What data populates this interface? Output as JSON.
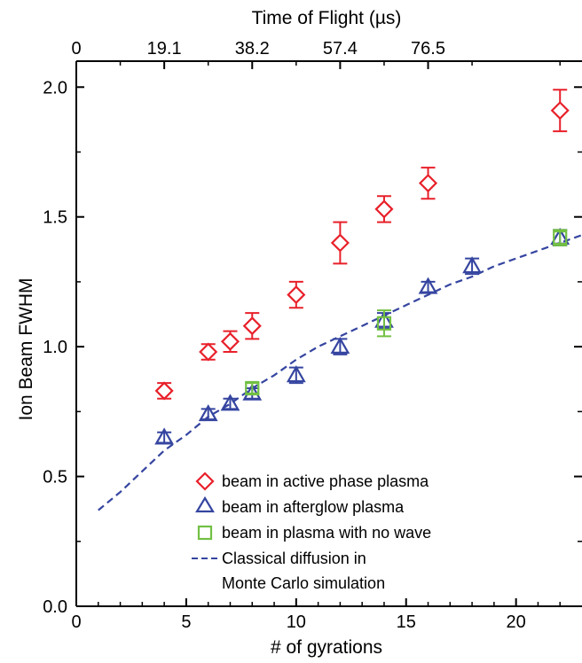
{
  "chart_data": {
    "type": "scatter",
    "xlabel": "# of gyrations",
    "ylabel": "Ion Beam FWHM",
    "top_xlabel": "Time of Flight (µs)",
    "xlim": [
      0,
      23
    ],
    "ylim": [
      0,
      2.1
    ],
    "x_ticks": [
      0,
      5,
      10,
      15,
      20
    ],
    "x_tick_labels": [
      "0",
      "5",
      "10",
      "15",
      "20"
    ],
    "y_ticks": [
      0.0,
      0.5,
      1.0,
      1.5,
      2.0
    ],
    "y_tick_labels": [
      "0.0",
      "0.5",
      "1.0",
      "1.5",
      "2.0"
    ],
    "top_ticks": [
      0,
      4,
      8,
      12,
      16
    ],
    "top_tick_labels": [
      "0",
      "19.1",
      "38.2",
      "57.4",
      "76.5"
    ],
    "grid": false,
    "legend_position": "bottom-right",
    "series": [
      {
        "name": "beam in active phase plasma",
        "marker": "diamond",
        "color": "#e8202a",
        "x": [
          4,
          6,
          7,
          8,
          10,
          12,
          14,
          16,
          22
        ],
        "y": [
          0.83,
          0.98,
          1.02,
          1.08,
          1.2,
          1.4,
          1.53,
          1.63,
          1.91
        ],
        "err": [
          0.03,
          0.03,
          0.04,
          0.05,
          0.05,
          0.08,
          0.05,
          0.06,
          0.08
        ]
      },
      {
        "name": "beam in afterglow plasma",
        "marker": "triangle",
        "color": "#3545a0",
        "x": [
          4,
          6,
          7,
          8,
          10,
          12,
          14,
          16,
          18,
          22
        ],
        "y": [
          0.65,
          0.74,
          0.78,
          0.82,
          0.89,
          1.0,
          1.1,
          1.23,
          1.31,
          1.42
        ],
        "err": [
          0.02,
          0.02,
          0.02,
          0.02,
          0.03,
          0.03,
          0.03,
          0.02,
          0.03,
          0.03
        ]
      },
      {
        "name": "beam in plasma with no wave",
        "marker": "square",
        "color": "#72c043",
        "x": [
          8,
          14,
          22
        ],
        "y": [
          0.84,
          1.09,
          1.42
        ],
        "err": [
          0.02,
          0.05,
          0.03
        ]
      }
    ],
    "curve": {
      "name": "Classical diffusion in",
      "name_line2": "Monte Carlo simulation",
      "style": "dashed",
      "color": "#3545a0",
      "x": [
        1,
        2,
        3,
        4,
        5,
        6,
        7,
        8,
        9,
        10,
        11,
        12,
        13,
        14,
        15,
        16,
        17,
        18,
        19,
        20,
        21,
        22,
        23
      ],
      "y": [
        0.37,
        0.44,
        0.52,
        0.6,
        0.66,
        0.73,
        0.78,
        0.84,
        0.89,
        0.95,
        1.0,
        1.04,
        1.08,
        1.12,
        1.16,
        1.2,
        1.24,
        1.27,
        1.31,
        1.34,
        1.37,
        1.4,
        1.43
      ]
    }
  }
}
